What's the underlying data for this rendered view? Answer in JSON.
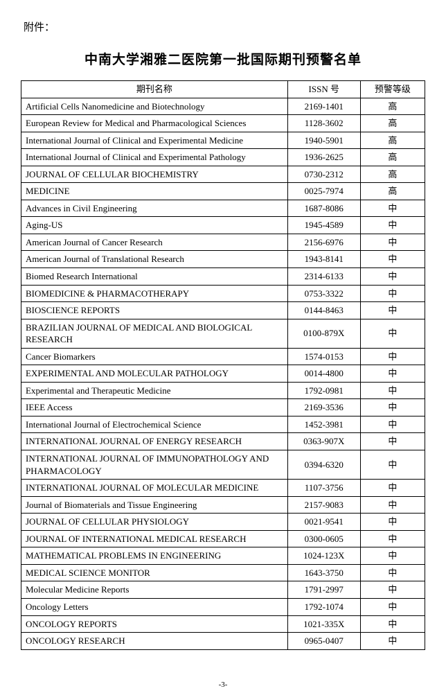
{
  "attachment_label": "附件：",
  "title": "中南大学湘雅二医院第一批国际期刊预警名单",
  "table": {
    "columns": [
      "期刊名称",
      "ISSN 号",
      "预警等级"
    ],
    "col_widths_pct": [
      66,
      18,
      16
    ],
    "border_color": "#000000",
    "header_align": "center",
    "body_font_name": "Times New Roman",
    "cjk_font_name": "SimSun",
    "font_size_pt": 13,
    "rows": [
      {
        "name": "Artificial Cells Nanomedicine and Biotechnology",
        "issn": "2169-1401",
        "level": "高"
      },
      {
        "name": "European Review for Medical and Pharmacological Sciences",
        "issn": "1128-3602",
        "level": "高"
      },
      {
        "name": "International Journal of Clinical and Experimental Medicine",
        "issn": "1940-5901",
        "level": "高"
      },
      {
        "name": "International Journal of Clinical and Experimental Pathology",
        "issn": "1936-2625",
        "level": "高"
      },
      {
        "name": "JOURNAL OF CELLULAR BIOCHEMISTRY",
        "issn": "0730-2312",
        "level": "高"
      },
      {
        "name": "MEDICINE",
        "issn": "0025-7974",
        "level": "高"
      },
      {
        "name": "Advances in Civil Engineering",
        "issn": "1687-8086",
        "level": "中"
      },
      {
        "name": "Aging-US",
        "issn": "1945-4589",
        "level": "中"
      },
      {
        "name": "American Journal of Cancer Research",
        "issn": "2156-6976",
        "level": "中"
      },
      {
        "name": "American Journal of Translational Research",
        "issn": "1943-8141",
        "level": "中"
      },
      {
        "name": "Biomed Research International",
        "issn": "2314-6133",
        "level": "中"
      },
      {
        "name": "BIOMEDICINE & PHARMACOTHERAPY",
        "issn": "0753-3322",
        "level": "中"
      },
      {
        "name": "BIOSCIENCE REPORTS",
        "issn": "0144-8463",
        "level": "中"
      },
      {
        "name": "BRAZILIAN JOURNAL OF MEDICAL AND BIOLOGICAL RESEARCH",
        "issn": "0100-879X",
        "level": "中"
      },
      {
        "name": "Cancer Biomarkers",
        "issn": "1574-0153",
        "level": "中"
      },
      {
        "name": "EXPERIMENTAL AND MOLECULAR PATHOLOGY",
        "issn": "0014-4800",
        "level": "中"
      },
      {
        "name": "Experimental and Therapeutic Medicine",
        "issn": "1792-0981",
        "level": "中"
      },
      {
        "name": "IEEE Access",
        "issn": "2169-3536",
        "level": "中"
      },
      {
        "name": "International Journal of Electrochemical Science",
        "issn": "1452-3981",
        "level": "中"
      },
      {
        "name": "INTERNATIONAL JOURNAL OF ENERGY RESEARCH",
        "issn": "0363-907X",
        "level": "中"
      },
      {
        "name": "INTERNATIONAL JOURNAL OF IMMUNOPATHOLOGY AND PHARMACOLOGY",
        "issn": "0394-6320",
        "level": "中"
      },
      {
        "name": "INTERNATIONAL JOURNAL OF MOLECULAR MEDICINE",
        "issn": "1107-3756",
        "level": "中"
      },
      {
        "name": "Journal of Biomaterials and Tissue Engineering",
        "issn": "2157-9083",
        "level": "中"
      },
      {
        "name": "JOURNAL OF CELLULAR PHYSIOLOGY",
        "issn": "0021-9541",
        "level": "中"
      },
      {
        "name": "JOURNAL OF INTERNATIONAL MEDICAL RESEARCH",
        "issn": "0300-0605",
        "level": "中"
      },
      {
        "name": "MATHEMATICAL PROBLEMS IN ENGINEERING",
        "issn": "1024-123X",
        "level": "中"
      },
      {
        "name": "MEDICAL SCIENCE MONITOR",
        "issn": "1643-3750",
        "level": "中"
      },
      {
        "name": "Molecular Medicine Reports",
        "issn": "1791-2997",
        "level": "中"
      },
      {
        "name": "Oncology Letters",
        "issn": "1792-1074",
        "level": "中"
      },
      {
        "name": "ONCOLOGY REPORTS",
        "issn": "1021-335X",
        "level": "中"
      },
      {
        "name": "ONCOLOGY RESEARCH",
        "issn": "0965-0407",
        "level": "中"
      }
    ]
  },
  "page_number": "-3-",
  "colors": {
    "text": "#000000",
    "background": "#ffffff",
    "border": "#000000"
  }
}
